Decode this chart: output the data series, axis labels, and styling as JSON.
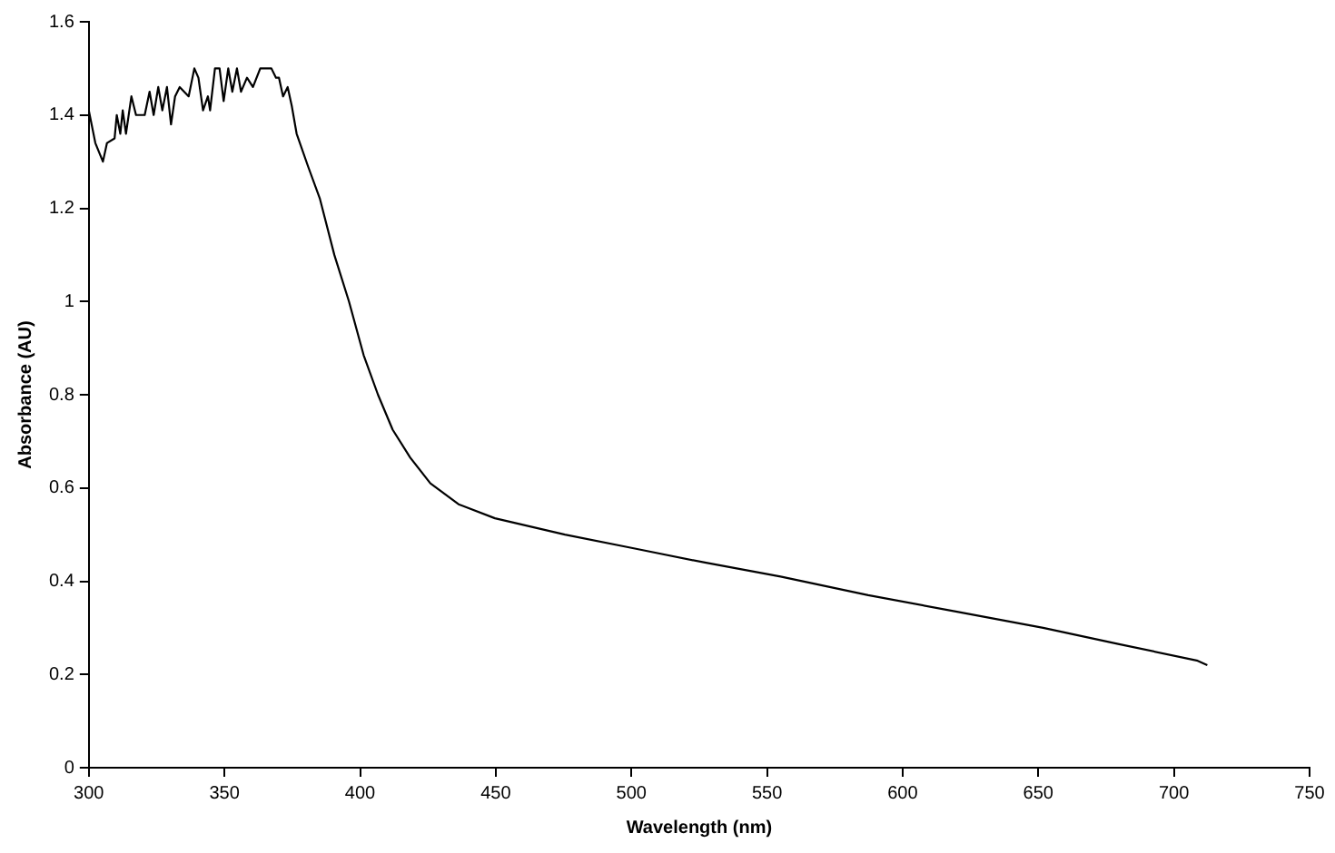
{
  "chart_data": {
    "type": "line",
    "xlabel": "Wavelength (nm)",
    "ylabel": "Absorbance (AU)",
    "xlim": [
      300,
      750
    ],
    "xticks": [
      300,
      350,
      400,
      450,
      500,
      550,
      600,
      650,
      700,
      750
    ],
    "ylim": [
      0,
      1.6
    ],
    "yticks": [
      0,
      0.2,
      0.4,
      0.6,
      0.8,
      1,
      1.2,
      1.4,
      1.6
    ],
    "grid": false,
    "legend": false,
    "marker": "none",
    "line_style": "solid",
    "series": [
      {
        "color": "#000000",
        "x": [
          300,
          302.4,
          305.2,
          306.7,
          309.5,
          310.3,
          311.6,
          312.5,
          313.7,
          315.7,
          317.4,
          320.6,
          322.4,
          323.9,
          325.6,
          327.1,
          328.8,
          330.3,
          331.8,
          333.5,
          336.8,
          338.9,
          340.4,
          342.1,
          343.9,
          344.7,
          346.5,
          348.2,
          349.7,
          351.4,
          352.9,
          354.6,
          356.1,
          358.3,
          360.5,
          363.2,
          367.3,
          369,
          370.1,
          371.6,
          373.3,
          374.8,
          376.6,
          380.8,
          385.2,
          390.5,
          395.9,
          401.3,
          406.6,
          412,
          418.5,
          425.9,
          436.3,
          449.7,
          475.5,
          501.3,
          527.1,
          555,
          587.3,
          619.6,
          651.8,
          679.8,
          708.4,
          712.3
        ],
        "values": [
          1.41,
          1.34,
          1.3,
          1.34,
          1.35,
          1.4,
          1.36,
          1.41,
          1.36,
          1.44,
          1.4,
          1.4,
          1.45,
          1.4,
          1.46,
          1.41,
          1.46,
          1.38,
          1.44,
          1.46,
          1.44,
          1.5,
          1.48,
          1.41,
          1.44,
          1.41,
          1.5,
          1.5,
          1.43,
          1.5,
          1.45,
          1.5,
          1.45,
          1.48,
          1.46,
          1.5,
          1.5,
          1.48,
          1.48,
          1.44,
          1.46,
          1.42,
          1.36,
          1.29,
          1.22,
          1.1,
          1,
          0.885,
          0.8,
          0.725,
          0.665,
          0.61,
          0.565,
          0.535,
          0.5,
          0.47,
          0.44,
          0.41,
          0.37,
          0.335,
          0.3,
          0.265,
          0.23,
          0.22
        ]
      }
    ]
  }
}
